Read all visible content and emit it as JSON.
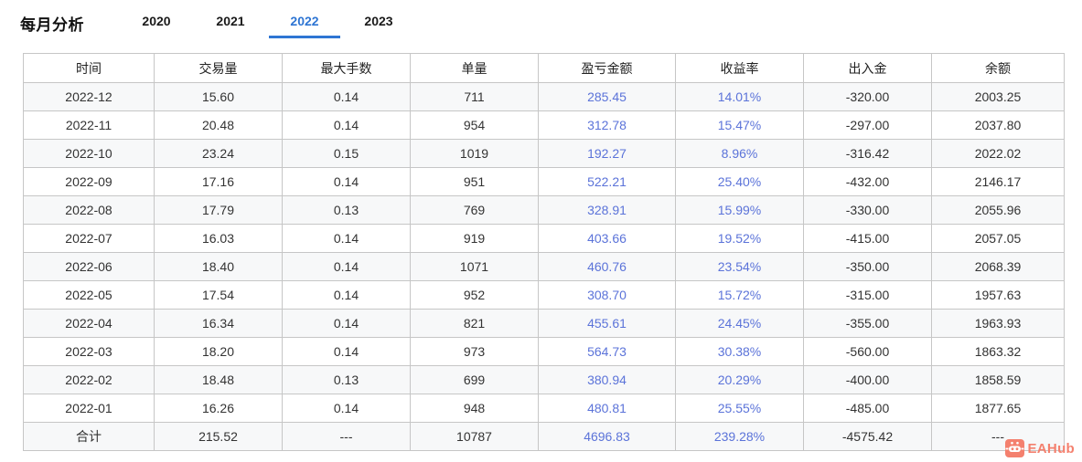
{
  "page": {
    "title": "每月分析"
  },
  "tabs": [
    {
      "label": "2020",
      "active": false
    },
    {
      "label": "2021",
      "active": false
    },
    {
      "label": "2022",
      "active": true
    },
    {
      "label": "2023",
      "active": false
    }
  ],
  "table": {
    "columns": [
      "时间",
      "交易量",
      "最大手数",
      "单量",
      "盈亏金额",
      "收益率",
      "出入金",
      "余额"
    ],
    "blue_column_indexes": [
      4,
      5
    ],
    "rows": [
      [
        "2022-12",
        "15.60",
        "0.14",
        "711",
        "285.45",
        "14.01%",
        "-320.00",
        "2003.25"
      ],
      [
        "2022-11",
        "20.48",
        "0.14",
        "954",
        "312.78",
        "15.47%",
        "-297.00",
        "2037.80"
      ],
      [
        "2022-10",
        "23.24",
        "0.15",
        "1019",
        "192.27",
        "8.96%",
        "-316.42",
        "2022.02"
      ],
      [
        "2022-09",
        "17.16",
        "0.14",
        "951",
        "522.21",
        "25.40%",
        "-432.00",
        "2146.17"
      ],
      [
        "2022-08",
        "17.79",
        "0.13",
        "769",
        "328.91",
        "15.99%",
        "-330.00",
        "2055.96"
      ],
      [
        "2022-07",
        "16.03",
        "0.14",
        "919",
        "403.66",
        "19.52%",
        "-415.00",
        "2057.05"
      ],
      [
        "2022-06",
        "18.40",
        "0.14",
        "1071",
        "460.76",
        "23.54%",
        "-350.00",
        "2068.39"
      ],
      [
        "2022-05",
        "17.54",
        "0.14",
        "952",
        "308.70",
        "15.72%",
        "-315.00",
        "1957.63"
      ],
      [
        "2022-04",
        "16.34",
        "0.14",
        "821",
        "455.61",
        "24.45%",
        "-355.00",
        "1963.93"
      ],
      [
        "2022-03",
        "18.20",
        "0.14",
        "973",
        "564.73",
        "30.38%",
        "-560.00",
        "1863.32"
      ],
      [
        "2022-02",
        "18.48",
        "0.13",
        "699",
        "380.94",
        "20.29%",
        "-400.00",
        "1858.59"
      ],
      [
        "2022-01",
        "16.26",
        "0.14",
        "948",
        "480.81",
        "25.55%",
        "-485.00",
        "1877.65"
      ]
    ],
    "total_row": [
      "合计",
      "215.52",
      "---",
      "10787",
      "4696.83",
      "239.28%",
      "-4575.42",
      "---"
    ]
  },
  "watermark": {
    "label": "EAHub",
    "icon": "robot-icon"
  },
  "colors": {
    "accent_blue": "#2e75d3",
    "value_blue": "#5b73d9",
    "watermark_salmon": "#f4806e",
    "stripe_gray": "#f7f8f9",
    "border_gray": "#c6c6c6"
  }
}
